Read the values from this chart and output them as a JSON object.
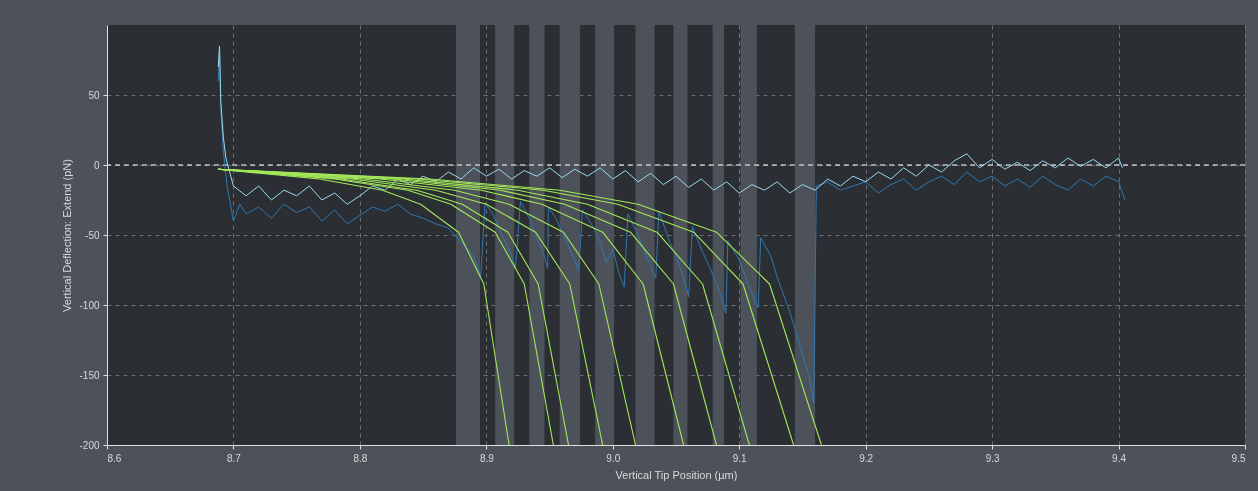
{
  "chart_data": {
    "type": "line",
    "xlabel": "Vertical Tip Position (µm)",
    "ylabel": "Vertical Deflection: Extend (pN)",
    "xlim": [
      8.6,
      9.5
    ],
    "xticks": [
      8.6,
      8.7,
      8.8,
      8.9,
      {
        "value": 9,
        "label": "9.0"
      },
      9.1,
      9.2,
      9.3,
      9.4,
      9.5
    ],
    "ylim": [
      -200,
      100
    ],
    "yticks": [
      -200,
      -150,
      -100,
      -50,
      0,
      50
    ],
    "grid": true,
    "bands": [
      {
        "axis": "x",
        "from": 8.876,
        "to": 8.895,
        "color": "#4d525a"
      },
      {
        "axis": "x",
        "from": 8.907,
        "to": 8.922,
        "color": "#4d525a"
      },
      {
        "axis": "x",
        "from": 8.934,
        "to": 8.946,
        "color": "#4d525a"
      },
      {
        "axis": "x",
        "from": 8.958,
        "to": 8.974,
        "color": "#4d525a"
      },
      {
        "axis": "x",
        "from": 8.986,
        "to": 9.001,
        "color": "#4d525a"
      },
      {
        "axis": "x",
        "from": 9.018,
        "to": 9.033,
        "color": "#4d525a"
      },
      {
        "axis": "x",
        "from": 9.048,
        "to": 9.059,
        "color": "#4d525a"
      },
      {
        "axis": "x",
        "from": 9.079,
        "to": 9.088,
        "color": "#4d525a"
      },
      {
        "axis": "x",
        "from": 9.101,
        "to": 9.114,
        "color": "#4d525a"
      },
      {
        "axis": "x",
        "from": 9.144,
        "to": 9.16,
        "color": "#4d525a"
      }
    ],
    "ref_lines": [
      {
        "axis": "y",
        "value": 0,
        "color": "#ffffff",
        "line_style": "dashed"
      }
    ],
    "series": [
      {
        "color": "#2f78b1",
        "x": [
          8.688,
          8.689,
          8.69,
          8.692,
          8.695,
          8.698,
          8.7,
          8.705,
          8.71,
          8.72,
          8.73,
          8.74,
          8.75,
          8.76,
          8.77,
          8.78,
          8.79,
          8.8,
          8.81,
          8.82,
          8.83,
          8.84,
          8.85,
          8.86,
          8.87,
          8.88,
          8.89,
          8.8955,
          8.899,
          8.905,
          8.91,
          8.915,
          8.92,
          8.923,
          8.927,
          8.935,
          8.94,
          8.945,
          8.9485,
          8.949,
          8.955,
          8.96,
          8.965,
          8.97,
          8.973,
          8.976,
          8.985,
          8.99,
          8.995,
          9.0,
          9.005,
          9.009,
          9.012,
          9.02,
          9.025,
          9.03,
          9.034,
          9.0365,
          9.045,
          9.05,
          9.055,
          9.06,
          9.063,
          9.07,
          9.08,
          9.085,
          9.0895,
          9.091,
          9.1,
          9.105,
          9.11,
          9.115,
          9.117,
          9.125,
          9.13,
          9.14,
          9.15,
          9.155,
          9.159,
          9.161,
          9.17,
          9.18,
          9.19,
          9.2,
          9.21,
          9.22,
          9.23,
          9.24,
          9.25,
          9.26,
          9.27,
          9.28,
          9.29,
          9.3,
          9.31,
          9.32,
          9.33,
          9.34,
          9.35,
          9.36,
          9.37,
          9.38,
          9.39,
          9.4,
          9.405
        ],
        "values": [
          60,
          80,
          40,
          10,
          -15,
          -30,
          -40,
          -28,
          -35,
          -30,
          -38,
          -28,
          -34,
          -30,
          -40,
          -32,
          -42,
          -36,
          -30,
          -33,
          -28,
          -35,
          -38,
          -42,
          -45,
          -55,
          -65,
          -80,
          -27,
          -35,
          -45,
          -55,
          -65,
          -74,
          -26,
          -40,
          -52,
          -62,
          -74,
          -30,
          -38,
          -48,
          -58,
          -68,
          -76,
          -32,
          -45,
          -55,
          -70,
          -60,
          -78,
          -87,
          -35,
          -50,
          -62,
          -72,
          -81,
          -33,
          -55,
          -65,
          -78,
          -94,
          -44,
          -60,
          -80,
          -92,
          -106,
          -54,
          -68,
          -80,
          -92,
          -102,
          -52,
          -65,
          -80,
          -105,
          -135,
          -150,
          -170,
          -15,
          -12,
          -18,
          -15,
          -12,
          -20,
          -14,
          -10,
          -18,
          -12,
          -8,
          -14,
          -5,
          -12,
          -8,
          -15,
          -10,
          -16,
          -8,
          -14,
          -18,
          -10,
          -15,
          -8,
          -12,
          -25
        ]
      },
      {
        "color": "#9ad9ee",
        "x": [
          8.688,
          8.689,
          8.69,
          8.692,
          8.694,
          8.697,
          8.7,
          8.71,
          8.72,
          8.73,
          8.74,
          8.75,
          8.76,
          8.77,
          8.78,
          8.79,
          8.8,
          8.81,
          8.82,
          8.83,
          8.84,
          8.85,
          8.86,
          8.87,
          8.88,
          8.89,
          8.9,
          8.91,
          8.92,
          8.93,
          8.94,
          8.95,
          8.96,
          8.97,
          8.98,
          8.99,
          9.0,
          9.01,
          9.02,
          9.03,
          9.04,
          9.05,
          9.06,
          9.07,
          9.08,
          9.09,
          9.1,
          9.11,
          9.12,
          9.13,
          9.14,
          9.15,
          9.16,
          9.17,
          9.18,
          9.19,
          9.2,
          9.21,
          9.22,
          9.23,
          9.24,
          9.25,
          9.26,
          9.27,
          9.28,
          9.29,
          9.3,
          9.31,
          9.32,
          9.33,
          9.34,
          9.35,
          9.36,
          9.37,
          9.38,
          9.39,
          9.4,
          9.403
        ],
        "values": [
          70,
          85,
          45,
          20,
          5,
          -5,
          -15,
          -22,
          -15,
          -25,
          -18,
          -22,
          -15,
          -25,
          -20,
          -28,
          -22,
          -15,
          -18,
          -10,
          -14,
          -8,
          -12,
          -5,
          -10,
          -2,
          -8,
          -3,
          -10,
          -4,
          -8,
          -2,
          -9,
          -3,
          -8,
          -2,
          -10,
          -4,
          -12,
          -6,
          -14,
          -8,
          -16,
          -10,
          -18,
          -12,
          -20,
          -14,
          -18,
          -12,
          -20,
          -14,
          -18,
          -10,
          -15,
          -8,
          -12,
          -5,
          -10,
          -2,
          -8,
          0,
          -5,
          3,
          8,
          -2,
          4,
          -3,
          2,
          -4,
          3,
          -2,
          5,
          -1,
          4,
          -2,
          5,
          -2
        ]
      },
      {
        "color": "#a3e85a",
        "x": [
          8.688,
          8.768,
          8.818,
          8.848,
          8.878,
          8.898,
          8.918
        ],
        "values": [
          -3,
          -10,
          -18,
          -28,
          -48,
          -85,
          -200
        ]
      },
      {
        "color": "#a3e85a",
        "x": [
          8.688,
          8.78,
          8.838,
          8.872,
          8.907,
          8.93,
          8.953
        ],
        "values": [
          -3,
          -10,
          -18,
          -28,
          -48,
          -85,
          -200
        ]
      },
      {
        "color": "#a3e85a",
        "x": [
          8.688,
          8.785,
          8.845,
          8.881,
          8.917,
          8.941,
          8.965
        ],
        "values": [
          -3,
          -10,
          -18,
          -28,
          -48,
          -85,
          -200
        ]
      },
      {
        "color": "#a3e85a",
        "x": [
          8.688,
          8.794,
          8.86,
          8.9,
          8.939,
          8.966,
          8.992
        ],
        "values": [
          -3,
          -10,
          -18,
          -28,
          -48,
          -85,
          -200
        ]
      },
      {
        "color": "#a3e85a",
        "x": [
          8.688,
          8.803,
          8.875,
          8.918,
          8.961,
          8.989,
          9.018
        ],
        "values": [
          -3,
          -10,
          -18,
          -28,
          -48,
          -85,
          -200
        ]
      },
      {
        "color": "#a3e85a",
        "x": [
          8.688,
          8.816,
          8.896,
          8.944,
          8.992,
          9.024,
          9.056
        ],
        "values": [
          -3,
          -10,
          -18,
          -28,
          -48,
          -85,
          -200
        ]
      },
      {
        "color": "#a3e85a",
        "x": [
          8.688,
          8.826,
          8.911,
          8.962,
          9.014,
          9.048,
          9.082
        ],
        "values": [
          -3,
          -10,
          -18,
          -28,
          -48,
          -85,
          -200
        ]
      },
      {
        "color": "#a3e85a",
        "x": [
          8.688,
          8.834,
          8.925,
          8.98,
          9.035,
          9.071,
          9.108
        ],
        "values": [
          -3,
          -10,
          -18,
          -28,
          -48,
          -85,
          -200
        ]
      },
      {
        "color": "#a3e85a",
        "x": [
          8.688,
          8.846,
          8.945,
          9.004,
          9.064,
          9.103,
          9.143
        ],
        "values": [
          -3,
          -10,
          -18,
          -28,
          -48,
          -85,
          -200
        ]
      },
      {
        "color": "#a3e85a",
        "x": [
          8.688,
          8.855,
          8.958,
          9.02,
          9.082,
          9.124,
          9.165
        ],
        "values": [
          -3,
          -10,
          -18,
          -28,
          -48,
          -85,
          -200
        ]
      }
    ]
  }
}
